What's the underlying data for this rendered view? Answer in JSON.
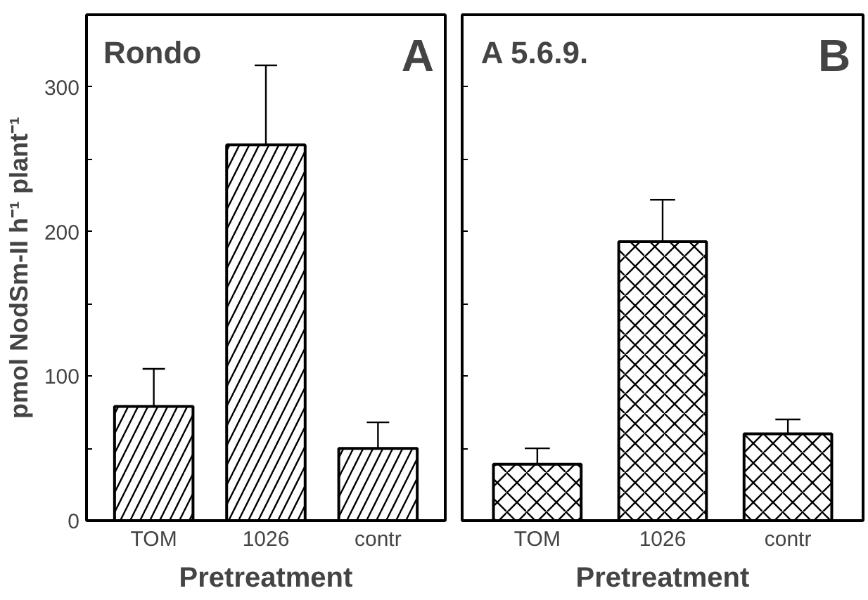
{
  "chart_data": [
    {
      "type": "bar",
      "title": "Rondo",
      "annotations": [
        "A"
      ],
      "categories": [
        "TOM",
        "1026",
        "contr"
      ],
      "values": [
        79,
        260,
        50
      ],
      "errors": [
        26,
        55,
        18
      ],
      "color": "#ffffff",
      "xlabel": "Pretreatment",
      "ylabel": "pmol NodSm-II h⁻¹ plant⁻¹",
      "ylim": [
        0,
        350
      ],
      "yticks": [
        0,
        {
          "value": 50,
          "label": null
        },
        100,
        {
          "value": 150,
          "label": null
        },
        200,
        {
          "value": 250,
          "label": null
        },
        300
      ],
      "grid": false
    },
    {
      "type": "bar",
      "title": "A 5.6.9.",
      "annotations": [
        "B"
      ],
      "categories": [
        "TOM",
        "1026",
        "contr"
      ],
      "values": [
        39,
        193,
        60
      ],
      "errors": [
        11,
        29,
        10
      ],
      "color": "#ffffff",
      "xlabel": "Pretreatment",
      "ylim": [
        0,
        350
      ],
      "yticks": [
        0,
        {
          "value": 50,
          "label": null
        },
        100,
        {
          "value": 150,
          "label": null
        },
        200,
        {
          "value": 250,
          "label": null
        },
        300
      ],
      "tick_labels": "x",
      "grid": false
    }
  ]
}
